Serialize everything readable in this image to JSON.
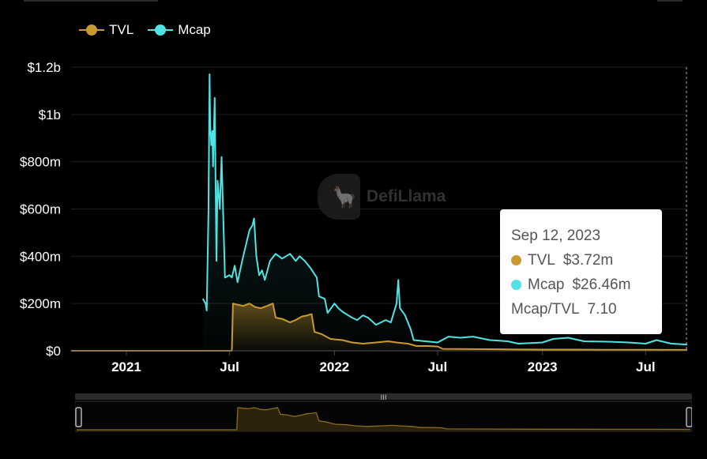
{
  "legend": {
    "tvl_label": "TVL",
    "mcap_label": "Mcap"
  },
  "watermark": {
    "text": "DefiLlama"
  },
  "tooltip": {
    "date": "Sep 12, 2023",
    "tvl_label": "TVL",
    "tvl_value": "$3.72m",
    "mcap_label": "Mcap",
    "mcap_value": "$26.46m",
    "ratio_label": "Mcap/TVL",
    "ratio_value": "7.10"
  },
  "colors": {
    "tvl": "#c99a2e",
    "mcap": "#4fe3e3",
    "background": "#000000",
    "grid": "#1e1e1e"
  },
  "chart_data": {
    "type": "line",
    "y_ticks": [
      "$0",
      "$200m",
      "$400m",
      "$600m",
      "$800m",
      "$1b",
      "$1.2b"
    ],
    "y_tick_values": [
      0,
      200,
      400,
      600,
      800,
      1000,
      1200
    ],
    "x_ticks": [
      "2021",
      "Jul",
      "2022",
      "Jul",
      "2023",
      "Jul"
    ],
    "x_tick_dates": [
      "2021-01-01",
      "2021-07-01",
      "2022-01-01",
      "2022-07-01",
      "2023-01-01",
      "2023-07-01"
    ],
    "x_range": [
      "2020-09-26",
      "2023-09-12"
    ],
    "ylim": [
      0,
      1200
    ],
    "y_unit": "USD millions",
    "grid": "horizontal",
    "legend_position": "top-left",
    "series": [
      {
        "name": "TVL",
        "fill": "area",
        "points": [
          [
            "2020-09-26",
            0
          ],
          [
            "2021-07-01",
            0
          ],
          [
            "2021-07-05",
            0
          ],
          [
            "2021-07-07",
            200
          ],
          [
            "2021-07-15",
            195
          ],
          [
            "2021-07-25",
            190
          ],
          [
            "2021-08-05",
            200
          ],
          [
            "2021-08-15",
            185
          ],
          [
            "2021-08-25",
            180
          ],
          [
            "2021-09-05",
            190
          ],
          [
            "2021-09-15",
            200
          ],
          [
            "2021-09-20",
            140
          ],
          [
            "2021-10-01",
            135
          ],
          [
            "2021-10-15",
            120
          ],
          [
            "2021-10-25",
            130
          ],
          [
            "2021-11-05",
            145
          ],
          [
            "2021-11-15",
            150
          ],
          [
            "2021-11-22",
            155
          ],
          [
            "2021-11-27",
            80
          ],
          [
            "2021-12-10",
            70
          ],
          [
            "2021-12-25",
            50
          ],
          [
            "2022-01-15",
            45
          ],
          [
            "2022-02-01",
            35
          ],
          [
            "2022-02-20",
            30
          ],
          [
            "2022-03-15",
            35
          ],
          [
            "2022-04-05",
            40
          ],
          [
            "2022-04-20",
            35
          ],
          [
            "2022-05-10",
            30
          ],
          [
            "2022-05-25",
            20
          ],
          [
            "2022-06-15",
            20
          ],
          [
            "2022-07-01",
            18
          ],
          [
            "2022-07-10",
            8
          ],
          [
            "2022-09-01",
            7
          ],
          [
            "2022-11-01",
            6
          ],
          [
            "2023-01-01",
            5
          ],
          [
            "2023-03-01",
            5
          ],
          [
            "2023-05-01",
            4
          ],
          [
            "2023-07-01",
            4
          ],
          [
            "2023-09-12",
            3.72
          ]
        ]
      },
      {
        "name": "Mcap",
        "fill": "area",
        "points": [
          [
            "2021-05-15",
            220
          ],
          [
            "2021-05-20",
            200
          ],
          [
            "2021-05-22",
            170
          ],
          [
            "2021-05-25",
            590
          ],
          [
            "2021-05-27",
            1170
          ],
          [
            "2021-05-28",
            950
          ],
          [
            "2021-05-30",
            870
          ],
          [
            "2021-06-01",
            930
          ],
          [
            "2021-06-02",
            780
          ],
          [
            "2021-06-05",
            1070
          ],
          [
            "2021-06-08",
            380
          ],
          [
            "2021-06-10",
            720
          ],
          [
            "2021-06-14",
            600
          ],
          [
            "2021-06-17",
            820
          ],
          [
            "2021-06-20",
            560
          ],
          [
            "2021-06-23",
            310
          ],
          [
            "2021-07-01",
            320
          ],
          [
            "2021-07-05",
            310
          ],
          [
            "2021-07-10",
            360
          ],
          [
            "2021-07-15",
            290
          ],
          [
            "2021-07-25",
            400
          ],
          [
            "2021-08-05",
            510
          ],
          [
            "2021-08-10",
            530
          ],
          [
            "2021-08-13",
            560
          ],
          [
            "2021-08-17",
            400
          ],
          [
            "2021-08-22",
            320
          ],
          [
            "2021-08-27",
            340
          ],
          [
            "2021-09-01",
            300
          ],
          [
            "2021-09-10",
            380
          ],
          [
            "2021-09-20",
            410
          ],
          [
            "2021-10-01",
            390
          ],
          [
            "2021-10-15",
            410
          ],
          [
            "2021-10-25",
            380
          ],
          [
            "2021-11-01",
            400
          ],
          [
            "2021-11-10",
            380
          ],
          [
            "2021-11-20",
            350
          ],
          [
            "2021-12-01",
            310
          ],
          [
            "2021-12-05",
            230
          ],
          [
            "2021-12-15",
            220
          ],
          [
            "2021-12-20",
            160
          ],
          [
            "2022-01-01",
            200
          ],
          [
            "2022-01-08",
            180
          ],
          [
            "2022-01-15",
            165
          ],
          [
            "2022-02-01",
            140
          ],
          [
            "2022-02-10",
            130
          ],
          [
            "2022-02-20",
            150
          ],
          [
            "2022-03-01",
            140
          ],
          [
            "2022-03-15",
            110
          ],
          [
            "2022-04-01",
            130
          ],
          [
            "2022-04-10",
            120
          ],
          [
            "2022-04-20",
            200
          ],
          [
            "2022-04-23",
            300
          ],
          [
            "2022-04-26",
            180
          ],
          [
            "2022-05-05",
            150
          ],
          [
            "2022-05-15",
            90
          ],
          [
            "2022-05-20",
            45
          ],
          [
            "2022-06-10",
            40
          ],
          [
            "2022-07-01",
            35
          ],
          [
            "2022-07-20",
            60
          ],
          [
            "2022-08-10",
            55
          ],
          [
            "2022-09-01",
            60
          ],
          [
            "2022-10-01",
            45
          ],
          [
            "2022-11-01",
            40
          ],
          [
            "2022-11-20",
            30
          ],
          [
            "2023-01-01",
            35
          ],
          [
            "2023-01-20",
            50
          ],
          [
            "2023-02-15",
            55
          ],
          [
            "2023-03-15",
            40
          ],
          [
            "2023-05-01",
            38
          ],
          [
            "2023-06-01",
            35
          ],
          [
            "2023-07-01",
            30
          ],
          [
            "2023-07-20",
            45
          ],
          [
            "2023-08-15",
            30
          ],
          [
            "2023-09-12",
            26.46
          ]
        ]
      }
    ]
  }
}
